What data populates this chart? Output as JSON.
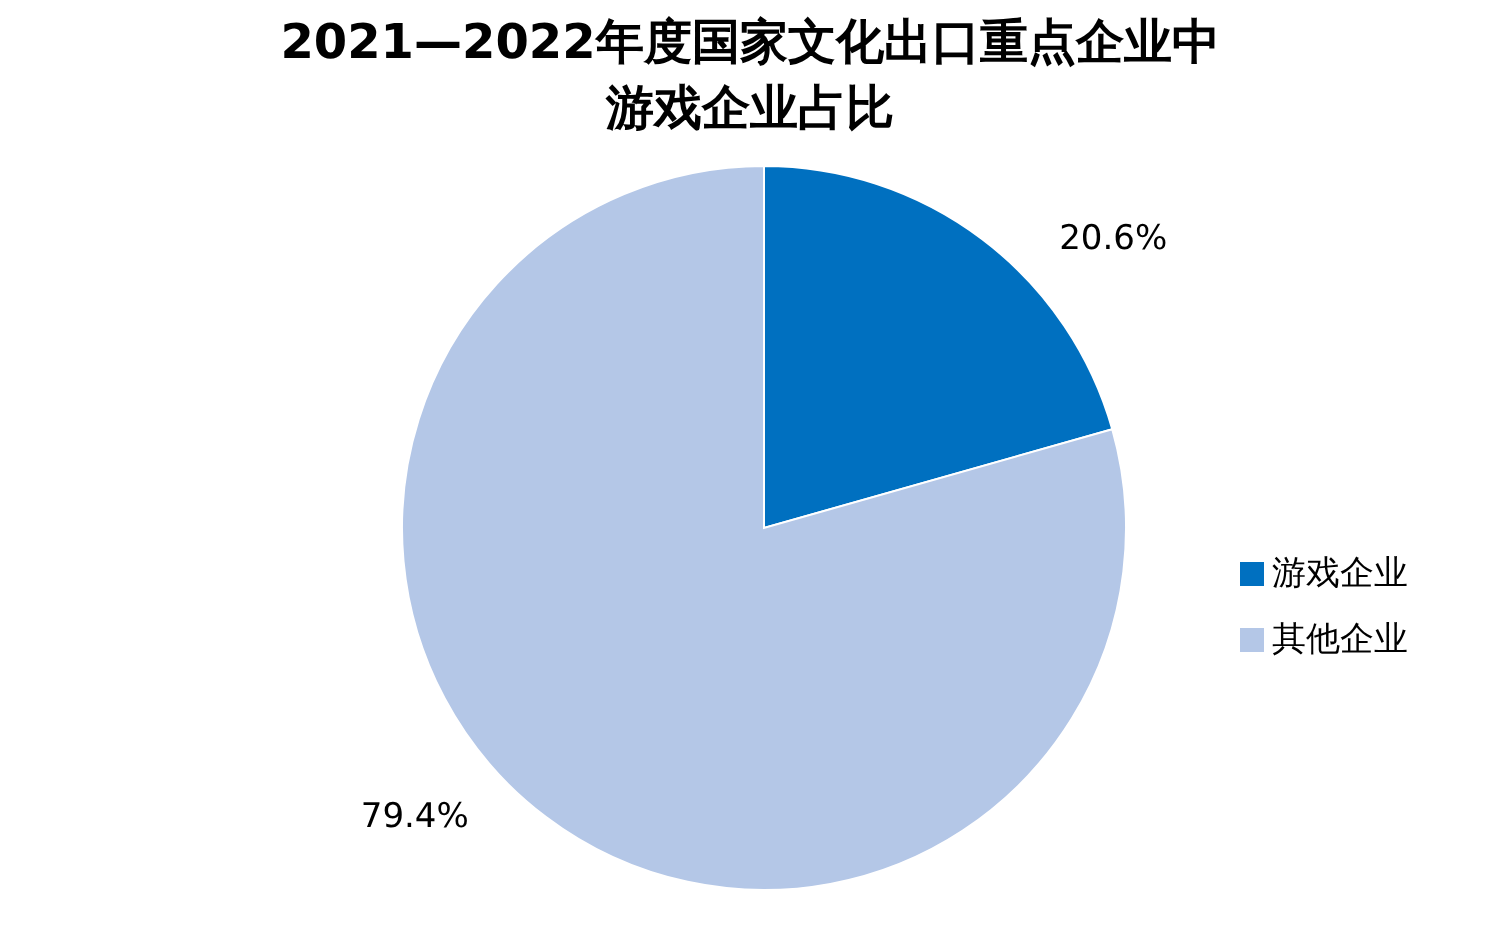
{
  "chart_data": {
    "type": "pie",
    "title": "2021—2022年度国家文化出口重点企业中游戏企业占比",
    "categories": [
      "游戏企业",
      "其他企业"
    ],
    "values": [
      20.6,
      79.4
    ],
    "colors": [
      "#0070c0",
      "#b4c7e7"
    ],
    "value_labels": [
      "20.6%",
      "79.4%"
    ],
    "legend": "right"
  }
}
